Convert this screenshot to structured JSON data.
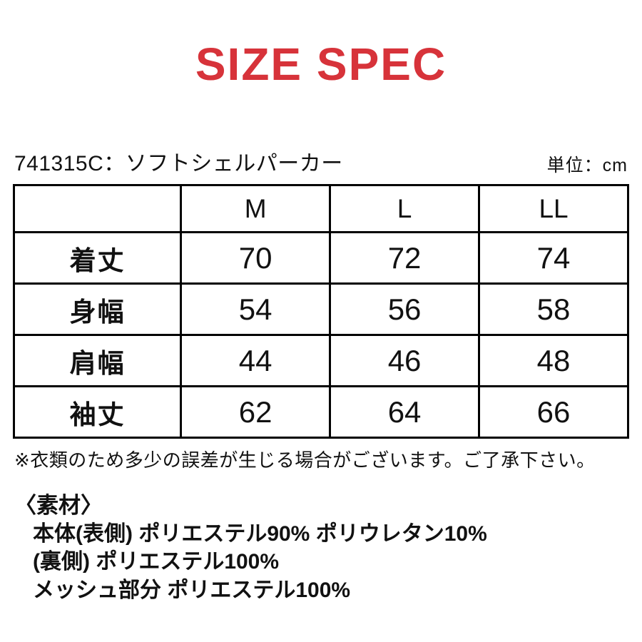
{
  "title": "SIZE SPEC",
  "colors": {
    "accent": "#d7333a",
    "text": "#111111",
    "table_border": "#000000"
  },
  "product": {
    "code_label": "741315C：ソフトシェルパーカー",
    "unit_label": "単位：cm"
  },
  "size_table": {
    "columns": [
      "M",
      "L",
      "LL"
    ],
    "rows": [
      {
        "label": "着丈",
        "values": [
          "70",
          "72",
          "74"
        ]
      },
      {
        "label": "身幅",
        "values": [
          "54",
          "56",
          "58"
        ]
      },
      {
        "label": "肩幅",
        "values": [
          "44",
          "46",
          "48"
        ]
      },
      {
        "label": "袖丈",
        "values": [
          "62",
          "64",
          "66"
        ]
      }
    ]
  },
  "note": "※衣類のため多少の誤差が生じる場合がございます。ご了承下さい。",
  "materials": {
    "heading": "〈素材〉",
    "lines": [
      "本体(表側) ポリエステル90% ポリウレタン10%",
      "(裏側) ポリエステル100%",
      "メッシュ部分 ポリエステル100%"
    ]
  },
  "chart_data": {
    "type": "table",
    "title": "SIZE SPEC",
    "unit": "cm",
    "columns": [
      "",
      "M",
      "L",
      "LL"
    ],
    "rows": [
      [
        "着丈",
        70,
        72,
        74
      ],
      [
        "身幅",
        54,
        56,
        58
      ],
      [
        "肩幅",
        44,
        46,
        48
      ],
      [
        "袖丈",
        62,
        64,
        66
      ]
    ]
  }
}
